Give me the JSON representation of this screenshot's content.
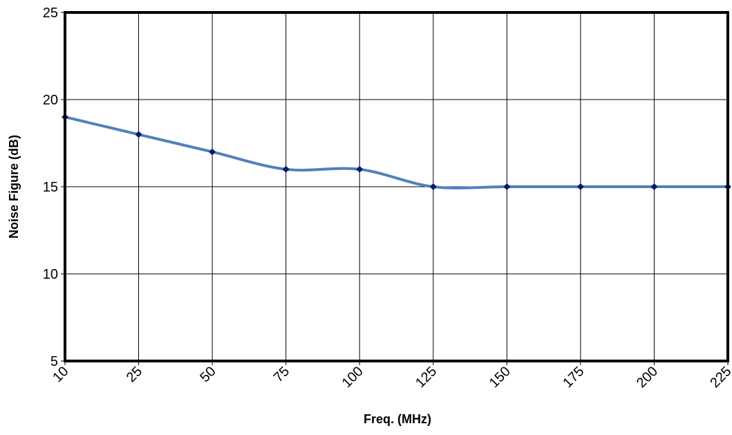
{
  "chart_data": {
    "type": "line",
    "title": "",
    "xlabel": "Freq. (MHz)",
    "ylabel": "Noise Figure (dB)",
    "categories": [
      "10",
      "25",
      "50",
      "75",
      "100",
      "125",
      "150",
      "175",
      "200",
      "225"
    ],
    "series": [
      {
        "values": [
          19,
          18,
          17,
          16,
          16,
          15,
          15,
          15,
          15,
          15
        ]
      }
    ],
    "ylim": [
      5,
      25
    ],
    "yticks": [
      "5",
      "10",
      "15",
      "20",
      "25"
    ],
    "grid": true,
    "legend": "none",
    "colors": {
      "line": "#4f81bd",
      "marker": "#0b1a6b",
      "grid": "#000000",
      "frame": "#000000"
    }
  }
}
